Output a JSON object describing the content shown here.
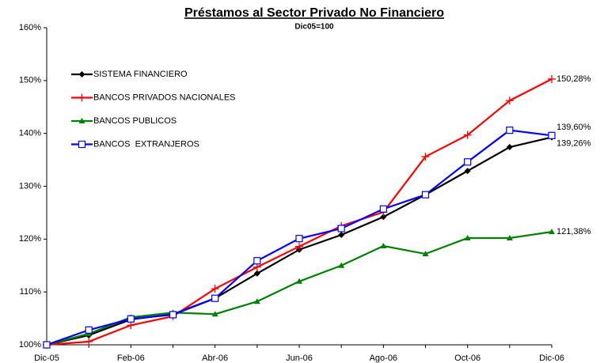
{
  "chart_data": {
    "type": "line",
    "title": "Préstamos al Sector Privado No Financiero",
    "subtitle": "Dic05=100",
    "categories": [
      "Dic-05",
      null,
      "Feb-06",
      null,
      "Abr-06",
      null,
      "Jun-06",
      null,
      "Ago-06",
      null,
      "Oct-06",
      null,
      "Dic-06"
    ],
    "ylim": [
      100,
      160
    ],
    "yticks": [
      {
        "value": 100,
        "label": "100%"
      },
      {
        "value": 110,
        "label": "110%"
      },
      {
        "value": 120,
        "label": "120%"
      },
      {
        "value": 130,
        "label": "130%"
      },
      {
        "value": 140,
        "label": "140%"
      },
      {
        "value": 150,
        "label": "150%"
      },
      {
        "value": 160,
        "label": "160%"
      }
    ],
    "legend": "upper left",
    "series": [
      {
        "name": "SISTEMA FINANCIERO",
        "color": "#000000",
        "marker": "diamond",
        "values": [
          100,
          101.8,
          104.8,
          105.8,
          108.8,
          113.5,
          118.0,
          120.8,
          124.2,
          128.4,
          132.9,
          137.4,
          139.26
        ],
        "value_labels": [
          null,
          null,
          null,
          null,
          null,
          null,
          null,
          null,
          null,
          null,
          null,
          null,
          "139,26%"
        ]
      },
      {
        "name": "BANCOS PRIVADOS NACIONALES",
        "color": "#ff0000",
        "marker": "plus",
        "values": [
          100,
          100.6,
          103.7,
          105.4,
          110.6,
          114.7,
          118.6,
          122.5,
          125.1,
          135.6,
          139.7,
          146.2,
          150.28
        ],
        "value_labels": [
          null,
          null,
          null,
          null,
          null,
          null,
          null,
          null,
          null,
          null,
          null,
          null,
          "150,28%"
        ]
      },
      {
        "name": "BANCOS PUBLICOS",
        "color": "#008000",
        "marker": "triangle",
        "values": [
          100,
          102.1,
          105.2,
          106.1,
          105.8,
          108.2,
          112.0,
          115.0,
          118.7,
          117.2,
          120.2,
          120.2,
          121.38
        ],
        "value_labels": [
          null,
          null,
          null,
          null,
          null,
          null,
          null,
          null,
          null,
          null,
          null,
          null,
          "121,38%"
        ]
      },
      {
        "name": "BANCOS  EXTRANJEROS",
        "color": "#0000ff",
        "marker": "square",
        "values": [
          100,
          102.8,
          104.9,
          105.7,
          108.8,
          115.9,
          120.1,
          122.0,
          125.7,
          128.4,
          134.6,
          140.6,
          139.6
        ],
        "value_labels": [
          null,
          null,
          null,
          null,
          null,
          null,
          null,
          null,
          null,
          null,
          null,
          null,
          "139,60%"
        ]
      }
    ]
  }
}
